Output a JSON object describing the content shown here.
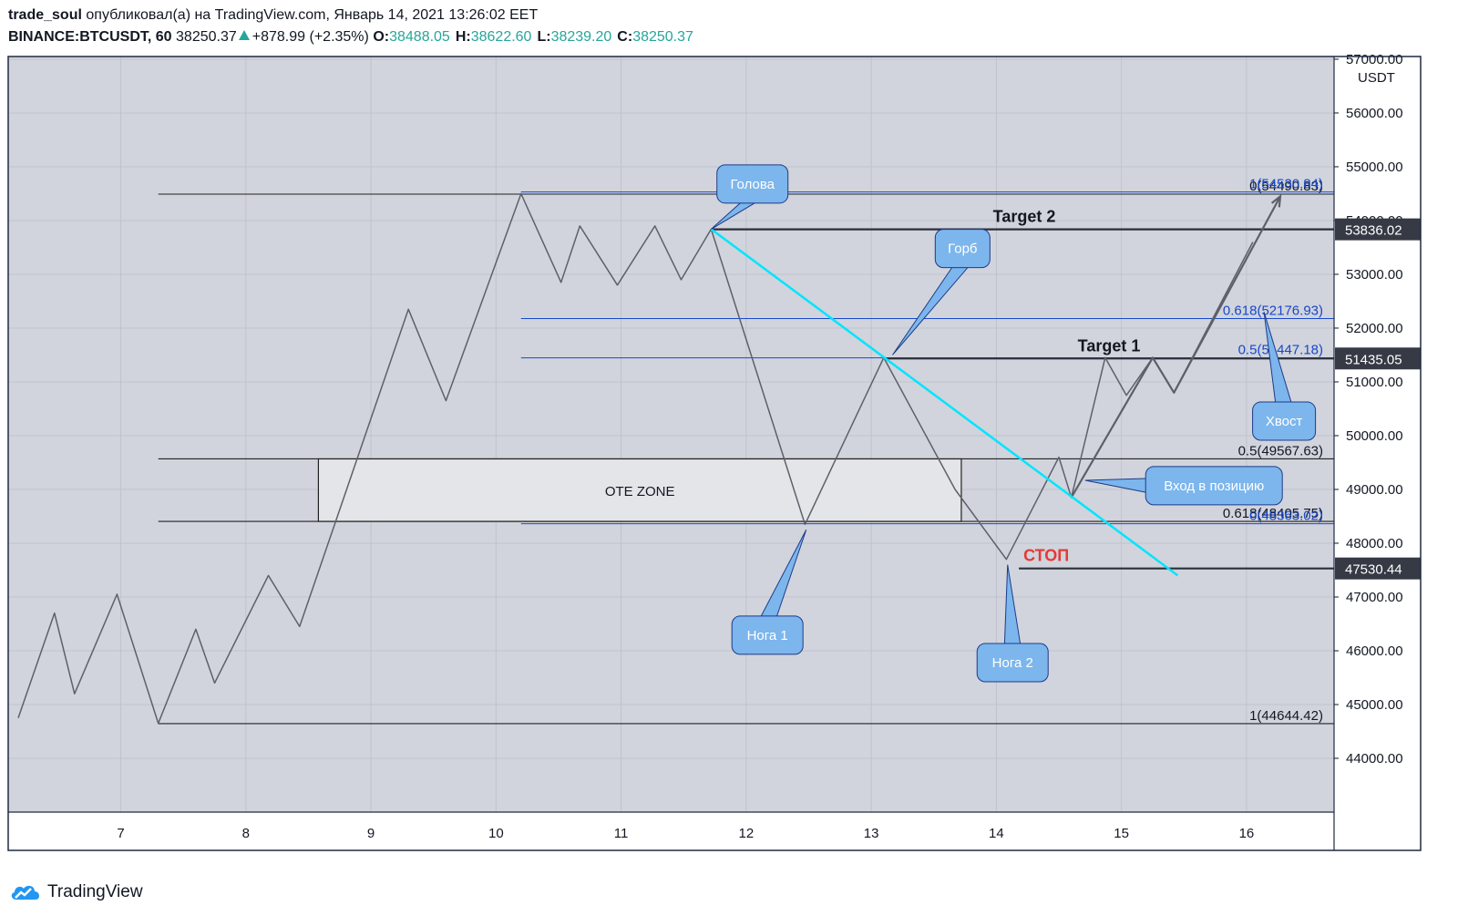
{
  "header": {
    "author": "trade_soul",
    "published_text": "опубликовал(а) на TradingView.com, Январь 14, 2021 13:26:02 EET",
    "symbol": "BINANCE:BTCUSDT, 60",
    "last_price": "38250.37",
    "change": "+878.99 (+2.35%)",
    "open_label": "O:",
    "open": "38488.05",
    "high_label": "H:",
    "high": "38622.60",
    "low_label": "L:",
    "low": "38239.20",
    "close_label": "C:",
    "close": "38250.37"
  },
  "brand": {
    "name": "TradingView",
    "icon": "tradingview-cloud-icon"
  },
  "colors": {
    "background": "#d1d4dc",
    "grid": "#bfc3cc",
    "price_line": "#5d606b",
    "fib_blue": "#1848cc",
    "trend_cyan": "#00e5ff",
    "callout_fill": "#7cb6ec",
    "stop_red": "#e53935",
    "price_badge": "#363a45"
  },
  "chart_data": {
    "type": "line",
    "title": "",
    "currency": "USDT",
    "xlabel": "",
    "ylabel": "",
    "ylim": [
      43000,
      57050
    ],
    "xlim": [
      6.1,
      16.7
    ],
    "x_ticks": [
      "7",
      "8",
      "9",
      "10",
      "11",
      "12",
      "13",
      "14",
      "15",
      "16"
    ],
    "y_ticks": [
      "44000.00",
      "45000.00",
      "46000.00",
      "47000.00",
      "48000.00",
      "49000.00",
      "50000.00",
      "51000.00",
      "52000.00",
      "53000.00",
      "54000.00",
      "55000.00",
      "56000.00",
      "57000.00"
    ],
    "grid": true,
    "series": [
      {
        "values": [
          [
            6.18,
            44750
          ],
          [
            6.47,
            46700
          ],
          [
            6.63,
            45200
          ],
          [
            6.97,
            47050
          ],
          [
            7.3,
            44650
          ],
          [
            7.6,
            46400
          ],
          [
            7.75,
            45400
          ],
          [
            8.18,
            47400
          ],
          [
            8.43,
            46450
          ],
          [
            9.3,
            52350
          ],
          [
            9.6,
            50650
          ],
          [
            10.2,
            54500
          ],
          [
            10.52,
            52850
          ],
          [
            10.67,
            53900
          ],
          [
            10.97,
            52800
          ],
          [
            11.27,
            53900
          ],
          [
            11.48,
            52900
          ],
          [
            11.72,
            53840
          ],
          [
            12.47,
            48350
          ],
          [
            13.1,
            51450
          ],
          [
            13.67,
            49000
          ],
          [
            14.08,
            47700
          ],
          [
            14.5,
            49600
          ],
          [
            14.6,
            48850
          ],
          [
            14.87,
            51450
          ],
          [
            15.04,
            50750
          ],
          [
            15.25,
            51450
          ],
          [
            15.42,
            50800
          ],
          [
            16.05,
            53600
          ]
        ]
      },
      {
        "values": [
          [
            14.6,
            48850
          ],
          [
            15.25,
            51450
          ],
          [
            15.42,
            50800
          ],
          [
            16.27,
            54450
          ]
        ]
      }
    ],
    "annotations": {
      "trend_line": [
        [
          11.72,
          53840
        ],
        [
          15.45,
          47400
        ]
      ],
      "horizontal_levels": [
        {
          "price": 53836.02,
          "label": "Target 2",
          "from_x": 11.72
        },
        {
          "price": 51435.05,
          "label": "Target 1",
          "from_x": 13.1
        },
        {
          "price": 47530.44,
          "label": "СТОП",
          "from_x": 14.18
        }
      ],
      "price_badges": [
        "53836.02",
        "51435.05",
        "47530.44"
      ],
      "fib_black": {
        "from_x": 7.3,
        "levels": [
          {
            "price": 54490.83,
            "label": "0(54490.83)"
          },
          {
            "price": 49567.63,
            "label": "0.5(49567.63)"
          },
          {
            "price": 48405.75,
            "label": "0.618(48405.75)"
          },
          {
            "price": 44644.42,
            "label": "1(44644.42)"
          }
        ]
      },
      "fib_blue": {
        "from_x": 10.2,
        "levels": [
          {
            "price": 54530.84,
            "label": "1(54530.84)"
          },
          {
            "price": 52176.93,
            "label": "0.618(52176.93)"
          },
          {
            "price": 51447.18,
            "label": "0.5(51447.18)"
          },
          {
            "price": 48363.02,
            "label": "0(48363.02)"
          }
        ]
      },
      "ote_zone": {
        "label": "OTE ZONE",
        "x_from": 8.58,
        "x_to": 13.72,
        "price_top": 49567.63,
        "price_bottom": 48405.75
      },
      "callouts": [
        {
          "text": "Голова",
          "box_x": 12.05,
          "box_price": 54680,
          "tip_x": 11.72,
          "tip_price": 53840
        },
        {
          "text": "Горб",
          "box_x": 13.73,
          "box_price": 53480,
          "tip_x": 13.17,
          "tip_price": 51500
        },
        {
          "text": "Нога 1",
          "box_x": 12.17,
          "box_price": 46290,
          "tip_x": 12.48,
          "tip_price": 48250
        },
        {
          "text": "Нога 2",
          "box_x": 14.13,
          "box_price": 45780,
          "tip_x": 14.09,
          "tip_price": 47600
        },
        {
          "text": "Хвост",
          "box_x": 16.3,
          "box_price": 50270,
          "tip_x": 16.14,
          "tip_price": 52300
        },
        {
          "text": "Вход в позицию",
          "box_x": 15.74,
          "box_price": 49070,
          "tip_x": 14.71,
          "tip_price": 49170
        }
      ]
    }
  }
}
